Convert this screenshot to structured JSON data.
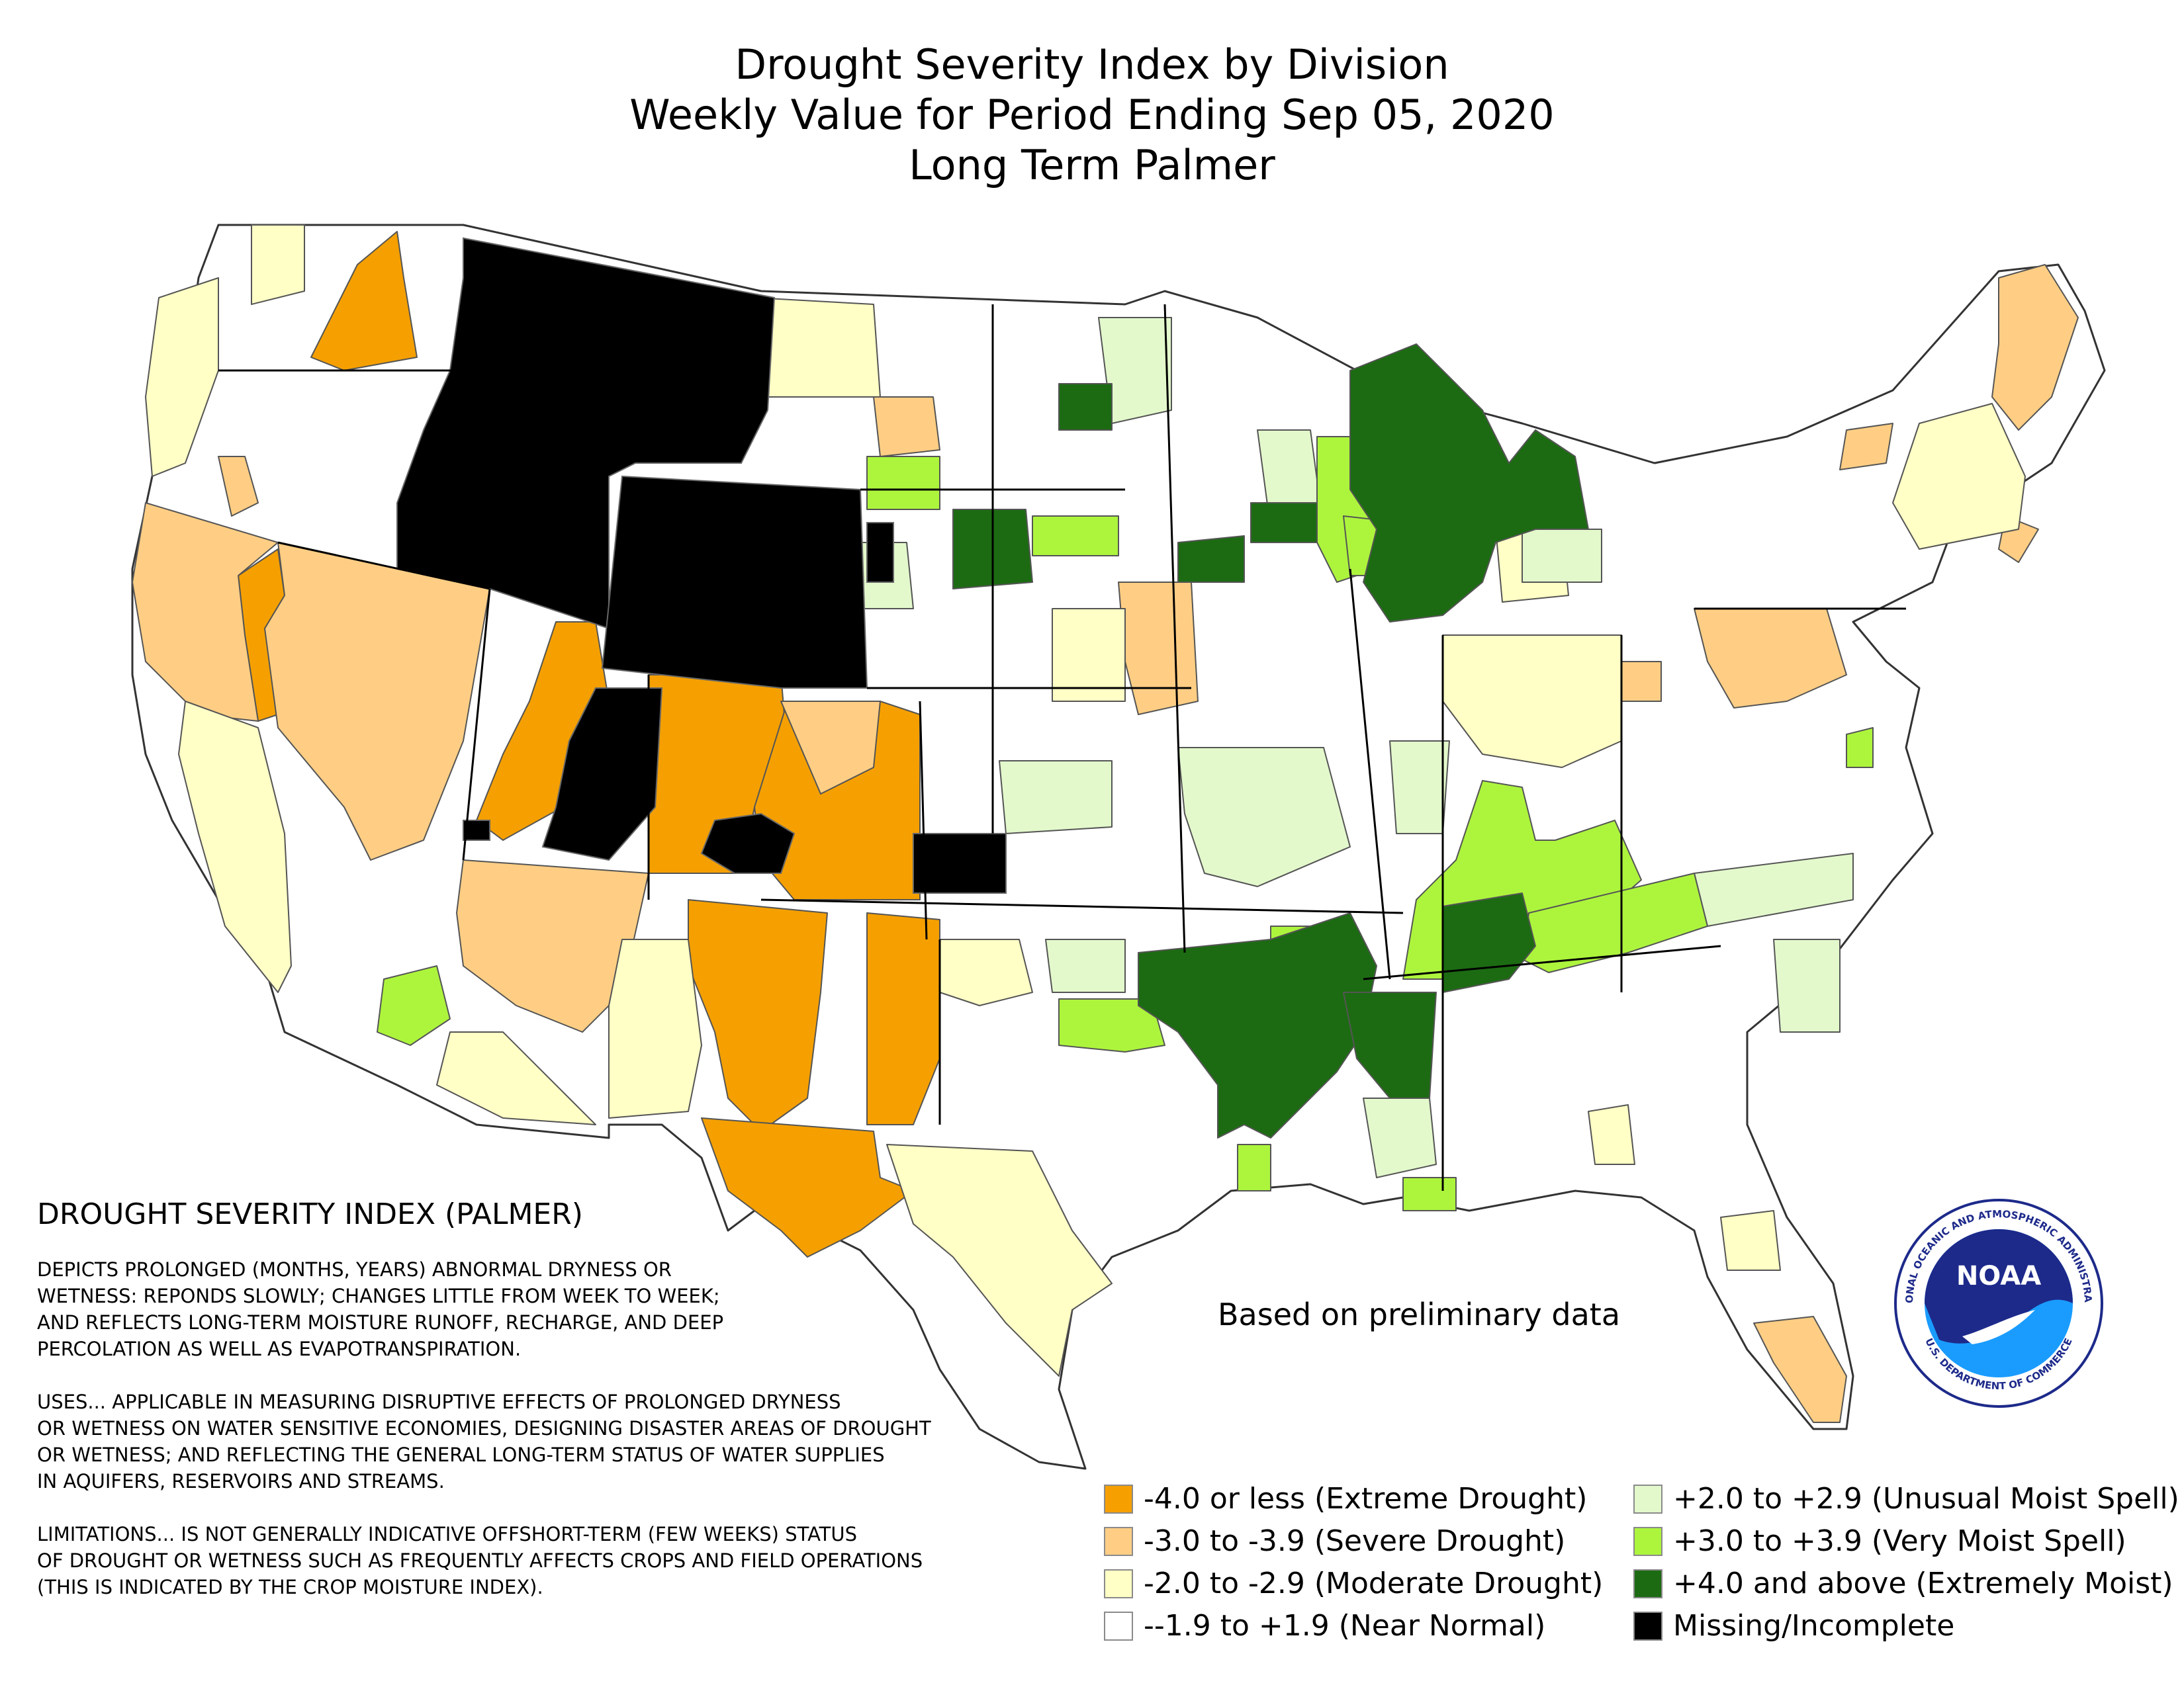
{
  "title": {
    "line1": "Drought Severity Index by Division",
    "line2": "Weekly Value for Period Ending Sep 05, 2020",
    "line3": "Long Term Palmer"
  },
  "note": "Based on preliminary data",
  "explanation": {
    "heading": "DROUGHT SEVERITY INDEX (PALMER)",
    "depicts": "DEPICTS PROLONGED (MONTHS, YEARS) ABNORMAL DRYNESS OR\nWETNESS: REPONDS SLOWLY; CHANGES LITTLE FROM WEEK TO WEEK;\nAND REFLECTS LONG-TERM MOISTURE RUNOFF, RECHARGE, AND DEEP\nPERCOLATION AS WELL AS EVAPOTRANSPIRATION.",
    "uses": "USES... APPLICABLE IN MEASURING DISRUPTIVE EFFECTS OF PROLONGED DRYNESS\nOR WETNESS ON WATER SENSITIVE ECONOMIES, DESIGNING DISASTER AREAS OF DROUGHT\nOR WETNESS; AND REFLECTING THE GENERAL LONG-TERM STATUS OF WATER SUPPLIES\nIN AQUIFERS, RESERVOIRS AND STREAMS.",
    "limitations": "LIMITATIONS... IS NOT GENERALLY INDICATIVE OFFSHORT-TERM (FEW WEEKS) STATUS\nOF DROUGHT OR WETNESS SUCH AS FREQUENTLY AFFECTS CROPS AND FIELD OPERATIONS\n(THIS IS INDICATED BY THE CROP MOISTURE INDEX)."
  },
  "legend": [
    {
      "label": "-4.0 or less (Extreme Drought)",
      "color": "#f5a000"
    },
    {
      "label": "-3.0 to -3.9 (Severe Drought)",
      "color": "#ffce84"
    },
    {
      "label": "-2.0 to -2.9 (Moderate Drought)",
      "color": "#ffffc6"
    },
    {
      "label": "--1.9 to +1.9 (Near Normal)",
      "color": "#ffffff"
    },
    {
      "label": "+2.0 to +2.9 (Unusual Moist Spell)",
      "color": "#e3f9cc"
    },
    {
      "label": "+3.0 to +3.9 (Very Moist Spell)",
      "color": "#adf53d"
    },
    {
      "label": "+4.0 and above (Extremely Moist)",
      "color": "#1c6b12"
    },
    {
      "label": "Missing/Incomplete",
      "color": "#000000"
    }
  ],
  "logo_text": {
    "ring_top": "NATIONAL OCEANIC AND ATMOSPHERIC ADMINISTRATION",
    "ring_bottom": "U.S. DEPARTMENT OF COMMERCE",
    "center": "NOAA"
  },
  "regions": [
    {
      "name": "montana-idaho-west",
      "category": "missing"
    },
    {
      "name": "wyoming",
      "category": "missing"
    },
    {
      "name": "utah-central",
      "category": "missing"
    },
    {
      "name": "colorado-sw-pocket",
      "category": "missing"
    },
    {
      "name": "oklahoma-panhandle",
      "category": "missing"
    },
    {
      "name": "south-dakota-west-edge",
      "category": "missing"
    },
    {
      "name": "washington-central",
      "category": "extreme_drought"
    },
    {
      "name": "colorado-west",
      "category": "extreme_drought"
    },
    {
      "name": "colorado-east",
      "category": "extreme_drought"
    },
    {
      "name": "utah-west",
      "category": "extreme_drought"
    },
    {
      "name": "new-mexico-central",
      "category": "extreme_drought"
    },
    {
      "name": "new-mexico-east",
      "category": "extreme_drought"
    },
    {
      "name": "texas-trans-pecos",
      "category": "extreme_drought"
    },
    {
      "name": "california-sierra",
      "category": "extreme_drought"
    },
    {
      "name": "nevada",
      "category": "severe_drought"
    },
    {
      "name": "california-north",
      "category": "severe_drought"
    },
    {
      "name": "arizona-north",
      "category": "severe_drought"
    },
    {
      "name": "iowa-west",
      "category": "severe_drought"
    },
    {
      "name": "ohio-pennsylvania",
      "category": "severe_drought"
    },
    {
      "name": "maine",
      "category": "severe_drought"
    },
    {
      "name": "florida-south",
      "category": "severe_drought"
    },
    {
      "name": "oregon-coast",
      "category": "moderate_drought"
    },
    {
      "name": "california-central",
      "category": "moderate_drought"
    },
    {
      "name": "texas-central",
      "category": "moderate_drought"
    },
    {
      "name": "north-dakota",
      "category": "moderate_drought"
    },
    {
      "name": "new-york-new-england",
      "category": "moderate_drought"
    },
    {
      "name": "michigan-south",
      "category": "moderate_drought"
    },
    {
      "name": "south-dakota-east",
      "category": "unusual_moist"
    },
    {
      "name": "missouri",
      "category": "unusual_moist"
    },
    {
      "name": "kansas-east",
      "category": "unusual_moist"
    },
    {
      "name": "wisconsin-iowa",
      "category": "very_moist"
    },
    {
      "name": "kentucky",
      "category": "very_moist"
    },
    {
      "name": "oklahoma-southeast",
      "category": "very_moist"
    },
    {
      "name": "arizona-southwest",
      "category": "very_moist"
    },
    {
      "name": "michigan-upper",
      "category": "extremely_moist"
    },
    {
      "name": "arkansas-louisiana",
      "category": "extremely_moist"
    },
    {
      "name": "tennessee-west",
      "category": "extremely_moist"
    },
    {
      "name": "south-dakota-west",
      "category": "extremely_moist"
    },
    {
      "name": "minnesota-north",
      "category": "extremely_moist"
    }
  ]
}
